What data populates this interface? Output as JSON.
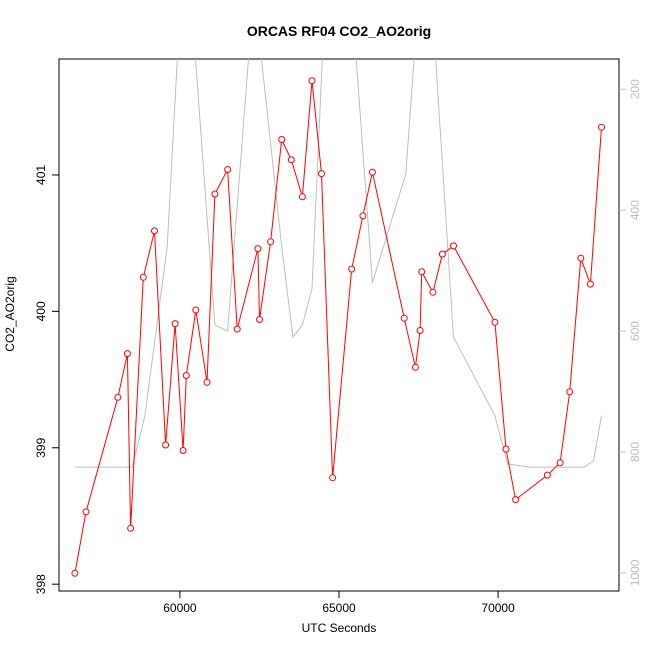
{
  "chart_data": {
    "type": "line",
    "title": "ORCAS RF04 CO2_AO2orig",
    "xlabel": "UTC Seconds",
    "ylabel": "CO2_AO2orig",
    "xlim": [
      56200,
      73800
    ],
    "ylim": [
      397.95,
      401.85
    ],
    "y2lim": [
      1030,
      150
    ],
    "x_ticks": [
      60000,
      65000,
      70000
    ],
    "y_ticks": [
      398,
      399,
      400,
      401
    ],
    "y2_ticks": [
      200,
      400,
      600,
      800,
      1000
    ],
    "grid": false,
    "colors": {
      "primary": "#ff0000",
      "secondary": "#bebebe"
    },
    "series": [
      {
        "axis": "left",
        "style": "line-points",
        "x": [
          56700,
          57050,
          58050,
          58350,
          58450,
          58850,
          59200,
          59550,
          59850,
          60100,
          60200,
          60500,
          60850,
          61100,
          61500,
          61800,
          62450,
          62500,
          62850,
          63200,
          63500,
          63850,
          64150,
          64450,
          64800,
          65400,
          65750,
          66050,
          67050,
          67400,
          67550,
          67600,
          67950,
          68250,
          68600,
          69900,
          70250,
          70550,
          71550,
          71950,
          72250,
          72600,
          72900,
          73250
        ],
        "y": [
          398.08,
          398.53,
          399.37,
          399.69,
          398.41,
          400.25,
          400.59,
          399.02,
          399.91,
          398.98,
          399.53,
          400.01,
          399.48,
          400.86,
          401.04,
          399.87,
          400.46,
          399.94,
          400.51,
          401.26,
          401.11,
          400.84,
          401.69,
          401.01,
          398.78,
          400.31,
          400.7,
          401.02,
          399.95,
          399.59,
          399.86,
          400.29,
          400.14,
          400.42,
          400.48,
          399.92,
          398.99,
          398.62,
          398.8,
          398.89,
          399.41,
          400.39,
          400.2,
          401.35
        ]
      },
      {
        "axis": "right",
        "style": "line",
        "x": [
          56700,
          58500,
          58900,
          59600,
          59950,
          60450,
          61100,
          61500,
          62200,
          62500,
          63200,
          63550,
          63850,
          64150,
          64500,
          65000,
          65500,
          66050,
          67100,
          67400,
          68000,
          68600,
          69900,
          70300,
          71000,
          72200,
          72700,
          73000,
          73250
        ],
        "y": [
          825,
          825,
          740,
          460,
          120,
          120,
          590,
          600,
          120,
          120,
          460,
          610,
          590,
          530,
          120,
          120,
          120,
          520,
          340,
          120,
          120,
          610,
          740,
          820,
          825,
          825,
          825,
          815,
          740
        ]
      }
    ]
  }
}
